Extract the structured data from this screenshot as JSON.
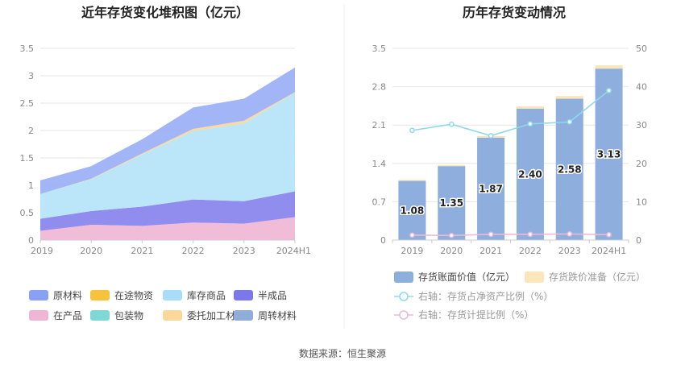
{
  "footer": {
    "source": "数据来源：恒生聚源"
  },
  "chart_data": [
    {
      "type": "area",
      "stacked": true,
      "title": "近年存货变化堆积图（亿元）",
      "categories": [
        "2019",
        "2020",
        "2021",
        "2022",
        "2023",
        "2024H1"
      ],
      "ylim": [
        0,
        3.5
      ],
      "yticks": [
        "0",
        "0.5",
        "1",
        "1.5",
        "2",
        "2.5",
        "3",
        "3.5"
      ],
      "series": [
        {
          "name": "在产品",
          "color": "#f0b8d6",
          "values": [
            0.17,
            0.28,
            0.26,
            0.32,
            0.3,
            0.42
          ]
        },
        {
          "name": "半成品",
          "color": "#8a87ee",
          "values": [
            0.22,
            0.25,
            0.35,
            0.42,
            0.41,
            0.47
          ]
        },
        {
          "name": "库存商品",
          "color": "#b7e5fa",
          "values": [
            0.45,
            0.58,
            0.95,
            1.25,
            1.42,
            1.8
          ]
        },
        {
          "name": "委托加工材料",
          "color": "#fcd79a",
          "values": [
            0.0,
            0.01,
            0.02,
            0.04,
            0.05,
            0.01
          ]
        },
        {
          "name": "在途物资",
          "color": "#f7c23c",
          "values": [
            0.0,
            0.0,
            0.0,
            0.0,
            0.0,
            0.0
          ]
        },
        {
          "name": "包装物",
          "color": "#80d8d6",
          "values": [
            0.0,
            0.0,
            0.0,
            0.0,
            0.0,
            0.0
          ]
        },
        {
          "name": "周转材料",
          "color": "#8fadd8",
          "values": [
            0.0,
            0.0,
            0.0,
            0.0,
            0.0,
            0.0
          ]
        },
        {
          "name": "原材料",
          "color": "#9db1f7",
          "values": [
            0.25,
            0.23,
            0.26,
            0.39,
            0.4,
            0.45
          ]
        }
      ],
      "legend": [
        {
          "name": "原材料",
          "color": "#8aa0f2"
        },
        {
          "name": "在途物资",
          "color": "#f7c23c"
        },
        {
          "name": "库存商品",
          "color": "#a9dcf7"
        },
        {
          "name": "半成品",
          "color": "#7d78ea"
        },
        {
          "name": "在产品",
          "color": "#eeb5d6"
        },
        {
          "name": "包装物",
          "color": "#80d8d6"
        },
        {
          "name": "委托加工材料",
          "color": "#fcd79a"
        },
        {
          "name": "周转材料",
          "color": "#8fadd8"
        }
      ]
    },
    {
      "type": "bar+line",
      "title": "历年存货变动情况",
      "categories": [
        "2019",
        "2020",
        "2021",
        "2022",
        "2023",
        "2024H1"
      ],
      "ylim": [
        0,
        3.5
      ],
      "yticks": [
        "0",
        "0.7",
        "1.4",
        "2.1",
        "2.8",
        "3.5"
      ],
      "y2lim": [
        0,
        50
      ],
      "y2ticks": [
        "0",
        "10",
        "20",
        "30",
        "40",
        "50"
      ],
      "bars": {
        "book_value": {
          "name": "存货账面价值（亿元）",
          "color": "#8eaedd",
          "values": [
            1.08,
            1.35,
            1.87,
            2.4,
            2.58,
            3.13
          ],
          "labels": [
            "1.08",
            "1.35",
            "1.87",
            "2.40",
            "2.58",
            "3.13"
          ]
        },
        "impairment": {
          "name": "存货跌价准备（亿元）",
          "color": "#fce5b8",
          "values": [
            0.02,
            0.02,
            0.03,
            0.04,
            0.05,
            0.06
          ]
        }
      },
      "lines": [
        {
          "name": "右轴：存货占净资产比例（%）",
          "color": "#8ed9ea",
          "values": [
            28.6,
            30.2,
            27.2,
            30.3,
            30.8,
            39.0
          ]
        },
        {
          "name": "右轴：存货计提比例（%）",
          "color": "#ecbad8",
          "values": [
            1.3,
            1.2,
            1.5,
            1.5,
            1.6,
            1.4
          ]
        }
      ]
    }
  ]
}
